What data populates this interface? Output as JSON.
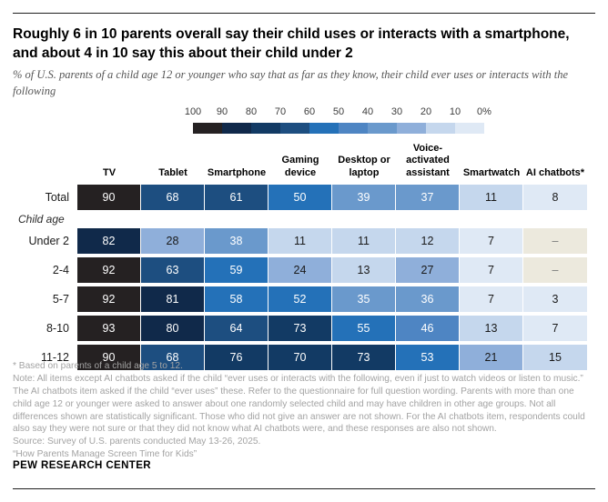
{
  "header": {
    "title": "Roughly 6 in 10 parents overall say their child uses or interacts with a smartphone, and about 4 in 10 say this about their child under 2",
    "subtitle": "% of U.S. parents of a child age 12 or younger who say that as far as they know, their child ever uses or interacts with the following"
  },
  "legend": {
    "labels": [
      "100",
      "90",
      "80",
      "70",
      "60",
      "50",
      "40",
      "30",
      "20",
      "10",
      "0%"
    ],
    "colors_100_to_0": [
      "#252122",
      "#10294a",
      "#123a64",
      "#1d4e80",
      "#2471b8",
      "#4e85c3",
      "#6a99cc",
      "#8fafda",
      "#c5d7ed",
      "#dfe9f5"
    ]
  },
  "table": {
    "columns": [
      "TV",
      "Tablet",
      "Smartphone",
      "Gaming device",
      "Desktop or laptop",
      "Voice-activated assistant",
      "Smartwatch",
      "AI chatbots*"
    ],
    "group_label": "Child age",
    "no_data": {
      "symbol": "–",
      "bg": "#ece9dd",
      "text_color": "#7a7a7a"
    },
    "rows": [
      {
        "label": "Total",
        "values": [
          90,
          68,
          61,
          50,
          39,
          37,
          11,
          8
        ]
      },
      {
        "label": "Under 2",
        "values": [
          82,
          28,
          38,
          11,
          11,
          12,
          7,
          null
        ]
      },
      {
        "label": "2-4",
        "values": [
          92,
          63,
          59,
          24,
          13,
          27,
          7,
          null
        ]
      },
      {
        "label": "5-7",
        "values": [
          92,
          81,
          58,
          52,
          35,
          36,
          7,
          3
        ]
      },
      {
        "label": "8-10",
        "values": [
          93,
          80,
          64,
          73,
          55,
          46,
          13,
          7
        ]
      },
      {
        "label": "11-12",
        "values": [
          90,
          68,
          76,
          70,
          73,
          53,
          21,
          15
        ]
      }
    ]
  },
  "footnotes": {
    "star": "* Based on parents of a child age 5 to 12.",
    "note": "Note: All items except AI chatbots asked if the child “ever uses or interacts with the following, even if just to watch videos or listen to music.” The AI chatbots item asked if the child “ever uses” these. Refer to the questionnaire for full question wording. Parents with more than one child age 12 or younger were asked to answer about one randomly selected child and may have children in other age groups. Not all differences shown are statistically significant. Those who did not give an answer are not shown. For the AI chatbots item, respondents could also say they were not sure or that they did not know what AI chatbots were, and these responses are also not shown.",
    "source": "Source: Survey of U.S. parents conducted May 13-26, 2025.",
    "quote": "“How Parents Manage Screen Time for Kids”"
  },
  "branding": "PEW RESEARCH CENTER",
  "chart_data": {
    "type": "heatmap",
    "title": "Roughly 6 in 10 parents overall say their child uses or interacts with a smartphone, and about 4 in 10 say this about their child under 2",
    "subtitle": "% of U.S. parents of a child age 12 or younger who say that as far as they know, their child ever uses or interacts with the following",
    "categories": [
      "TV",
      "Tablet",
      "Smartphone",
      "Gaming device",
      "Desktop or laptop",
      "Voice-activated assistant",
      "Smartwatch",
      "AI chatbots*"
    ],
    "series": [
      {
        "name": "Total",
        "values": [
          90,
          68,
          61,
          50,
          39,
          37,
          11,
          8
        ]
      },
      {
        "name": "Under 2",
        "values": [
          82,
          28,
          38,
          11,
          11,
          12,
          7,
          null
        ]
      },
      {
        "name": "2-4",
        "values": [
          92,
          63,
          59,
          24,
          13,
          27,
          7,
          null
        ]
      },
      {
        "name": "5-7",
        "values": [
          92,
          81,
          58,
          52,
          35,
          36,
          7,
          3
        ]
      },
      {
        "name": "8-10",
        "values": [
          93,
          80,
          64,
          73,
          55,
          46,
          13,
          7
        ]
      },
      {
        "name": "11-12",
        "values": [
          90,
          68,
          76,
          70,
          73,
          53,
          21,
          15
        ]
      }
    ],
    "row_group_label": "Child age",
    "value_unit": "%",
    "color_scale": {
      "range": [
        0,
        100
      ],
      "steps": 10,
      "legend_position": "top",
      "dark_is_high": true
    },
    "no_data_symbol": "–"
  }
}
